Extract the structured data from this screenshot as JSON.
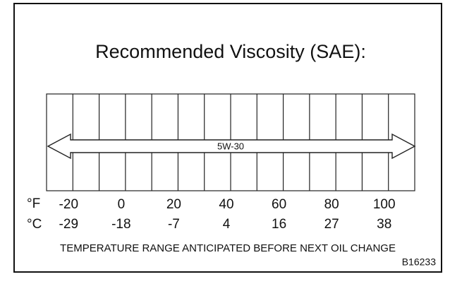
{
  "title": "Recommended Viscosity (SAE):",
  "grade": "5W-30",
  "fahrenheit": {
    "unit": "°F",
    "labels": [
      "-20",
      "0",
      "20",
      "40",
      "60",
      "80",
      "100"
    ]
  },
  "celsius": {
    "unit": "°C",
    "labels": [
      "-29",
      "-18",
      "-7",
      "4",
      "16",
      "27",
      "38"
    ]
  },
  "caption": "TEMPERATURE RANGE ANTICIPATED BEFORE NEXT OIL CHANGE",
  "code": "B16233"
}
